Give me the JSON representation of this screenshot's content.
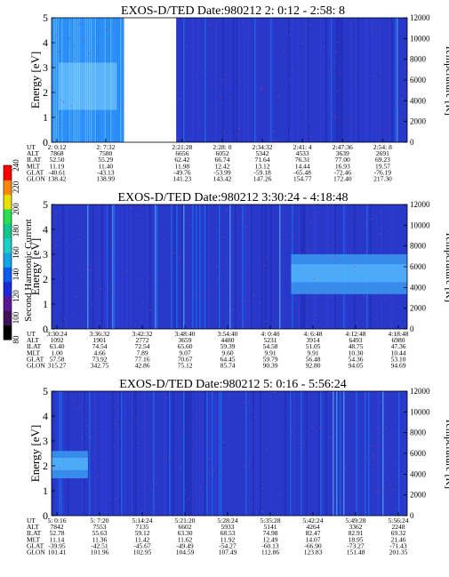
{
  "colors": {
    "background": "#2838c8",
    "stripe_light": "#60c8ff",
    "stripe_mid": "#1878f8",
    "stripe_dark": "#1e28b0",
    "band": "#3a9af0",
    "speck": "#c0347a",
    "gap": "#ffffff"
  },
  "colorbar": {
    "label": "Second Harmonic Current",
    "ticks": [
      "80",
      "100",
      "120",
      "140",
      "160",
      "180",
      "200",
      "220",
      "240"
    ],
    "colors": [
      "#000000",
      "#40105a",
      "#5a1896",
      "#1a2ad8",
      "#0b5cf0",
      "#12a6e6",
      "#18d0c8",
      "#10c890",
      "#28e050",
      "#e8e000",
      "#ff8800",
      "#ff0000"
    ]
  },
  "chart_data": [
    {
      "type": "heatmap",
      "title": "EXOS-D/TED   Date:980212  2: 0:12 - 2:58: 8",
      "ylabel": "Energy [eV]",
      "y2label": "Temperature [K]",
      "ylim": [
        0,
        5
      ],
      "y2lim": [
        0,
        12000
      ],
      "yticks": [
        "0",
        "1",
        "2",
        "3",
        "4",
        "5"
      ],
      "y2ticks": [
        "0",
        "2000",
        "4000",
        "6000",
        "8000",
        "10000",
        "12000"
      ],
      "xrange": [
        "2:0:12",
        "2:58:8"
      ],
      "data_gap": [
        "2:12:00",
        "2:20:30"
      ],
      "stripes": [
        {
          "from": "2:0:12",
          "to": "2:12:00",
          "color": "stripe_light"
        }
      ],
      "band": null,
      "ephemeris": {
        "rows": [
          "UT",
          "ALT",
          "ILAT",
          "MLT",
          "GLAT",
          "GLON"
        ],
        "cols": [
          [
            "2: 0:12",
            "7868",
            "52.50",
            "11.19",
            "-40.61",
            "138.42"
          ],
          [
            "2: 7:32",
            "7580",
            "55.29",
            "11.40",
            "-43.13",
            "138.99"
          ],
          [
            "2:21:28",
            "6656",
            "62.42",
            "11.98",
            "-49.76",
            "141.23"
          ],
          [
            "2:28: 0",
            "6052",
            "66.74",
            "12.42",
            "-53.99",
            "143.42"
          ],
          [
            "2:34:32",
            "5342",
            "71.64",
            "13.12",
            "-59.18",
            "147.26"
          ],
          [
            "2:41: 4",
            "4533",
            "76.31",
            "14.44",
            "-65.48",
            "154.77"
          ],
          [
            "2:47:36",
            "3639",
            "77.00",
            "16.93",
            "-72.46",
            "172.40"
          ],
          [
            "2:54: 8",
            "2691",
            "69.23",
            "19.57",
            "-76.19",
            "217.30"
          ]
        ]
      }
    },
    {
      "type": "heatmap",
      "title": "EXOS-D/TED   Date:980212  3:30:24 - 4:18:48",
      "ylabel": "Energy [eV]",
      "y2label": "Temperature [K]",
      "ylim": [
        0,
        5
      ],
      "y2lim": [
        0,
        12000
      ],
      "yticks": [
        "0",
        "1",
        "2",
        "3",
        "4",
        "5"
      ],
      "y2ticks": [
        "0",
        "2000",
        "4000",
        "6000",
        "8000",
        "10000",
        "12000"
      ],
      "xrange": [
        "3:30:24",
        "4:18:48"
      ],
      "data_gap": null,
      "stripes": [],
      "band": {
        "from": "4:3:00",
        "to": "4:18:48",
        "energy_low": 1.4,
        "energy_high": 3.0
      },
      "ephemeris": {
        "rows": [
          "UT",
          "ALT",
          "ILAT",
          "MLT",
          "GLAT",
          "GLON"
        ],
        "cols": [
          [
            "3:30:24",
            "1092",
            "63.40",
            "1.00",
            "57.58",
            "315.27"
          ],
          [
            "3:36:32",
            "1901",
            "74.54",
            "4.66",
            "73.92",
            "342.75"
          ],
          [
            "3:42:32",
            "2772",
            "72.54",
            "7.89",
            "77.16",
            "42.86"
          ],
          [
            "3:48:40",
            "3659",
            "65.60",
            "9.07",
            "70.67",
            "75.12"
          ],
          [
            "3:54:40",
            "4480",
            "59.39",
            "9.60",
            "64.45",
            "85.74"
          ],
          [
            "4: 0:40",
            "5231",
            "54.58",
            "9.91",
            "59.79",
            "90.39"
          ],
          [
            "4: 6:48",
            "3914",
            "51.05",
            "9.91",
            "56.48",
            "92.80"
          ],
          [
            "4:12:48",
            "6493",
            "48.75",
            "10.30",
            "54.36",
            "94.05"
          ],
          [
            "4:18:48",
            "6980",
            "47.36",
            "10.44",
            "53.10",
            "94.69"
          ]
        ]
      }
    },
    {
      "type": "heatmap",
      "title": "EXOS-D/TED   Date:980212  5: 0:16 - 5:56:24",
      "ylabel": "Energy [eV]",
      "y2label": "Temperature [K]",
      "ylim": [
        0,
        5
      ],
      "y2lim": [
        0,
        12000
      ],
      "yticks": [
        "0",
        "1",
        "2",
        "3",
        "4",
        "5"
      ],
      "y2ticks": [
        "0",
        "2000",
        "4000",
        "6000",
        "8000",
        "10000",
        "12000"
      ],
      "xrange": [
        "5:0:16",
        "5:56:24"
      ],
      "data_gap": null,
      "stripes": [],
      "band": {
        "from": "5:0:16",
        "to": "5:6:00",
        "energy_low": 1.5,
        "energy_high": 2.6
      },
      "ephemeris": {
        "rows": [
          "UT",
          "ALT",
          "ILAT",
          "MLT",
          "GLAT",
          "GLON"
        ],
        "cols": [
          [
            "5: 0:16",
            "7842",
            "52.78",
            "11.14",
            "-39.95",
            "101.41"
          ],
          [
            "5: 7:20",
            "7553",
            "55.63",
            "11.36",
            "-42.51",
            "101.96"
          ],
          [
            "5:14:24",
            "7135",
            "59.12",
            "11.42",
            "-45.67",
            "102.95"
          ],
          [
            "5:21:20",
            "6602",
            "63.30",
            "11.62",
            "-49.49",
            "104.59"
          ],
          [
            "5:28:24",
            "5933",
            "68.53",
            "11.92",
            "-54.27",
            "107.49"
          ],
          [
            "5:35:28",
            "5141",
            "74.98",
            "12.49",
            "-60.13",
            "112.86"
          ],
          [
            "5:42:24",
            "4264",
            "82.47",
            "14.07",
            "-66.90",
            "123.83"
          ],
          [
            "5:49:28",
            "3362",
            "82.91",
            "18.95",
            "-73.27",
            "151.48"
          ],
          [
            "5:56:24",
            "2248",
            "69.32",
            "21.46",
            "-71.43",
            "201.35"
          ]
        ]
      }
    }
  ]
}
